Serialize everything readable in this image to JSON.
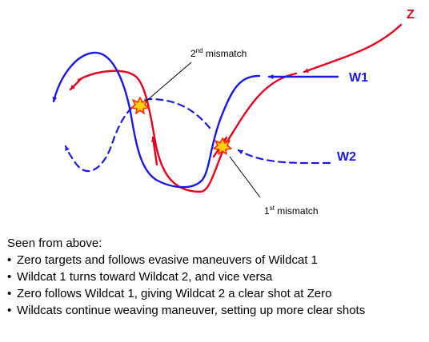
{
  "diagram": {
    "labels": {
      "zero": "Z",
      "wildcat1": "W1",
      "wildcat2": "W2",
      "mismatch2_ordinal": "2",
      "mismatch2_suffix": "nd",
      "mismatch2_word": " mismatch",
      "mismatch1_ordinal": "1",
      "mismatch1_suffix": "st",
      "mismatch1_word": " mismatch"
    },
    "colors": {
      "zero": "#e8001c",
      "wildcat": "#1a1ae6",
      "explosion_fill": "#ffd200",
      "explosion_stroke": "#ff2a00",
      "leader": "#000000"
    },
    "icons": [
      "explosion-icon",
      "arrowhead-icon"
    ]
  },
  "notes": {
    "heading": "Seen from above:",
    "bullet_glyph": "•",
    "items": [
      "Zero targets and follows evasive maneuvers of Wildcat 1",
      "Wildcat 1 turns toward Wildcat 2, and vice versa",
      "Zero follows Wildcat 1, giving Wildcat 2 a clear shot at Zero",
      "Wildcats continue weaving maneuver, setting up more clear shots"
    ]
  }
}
